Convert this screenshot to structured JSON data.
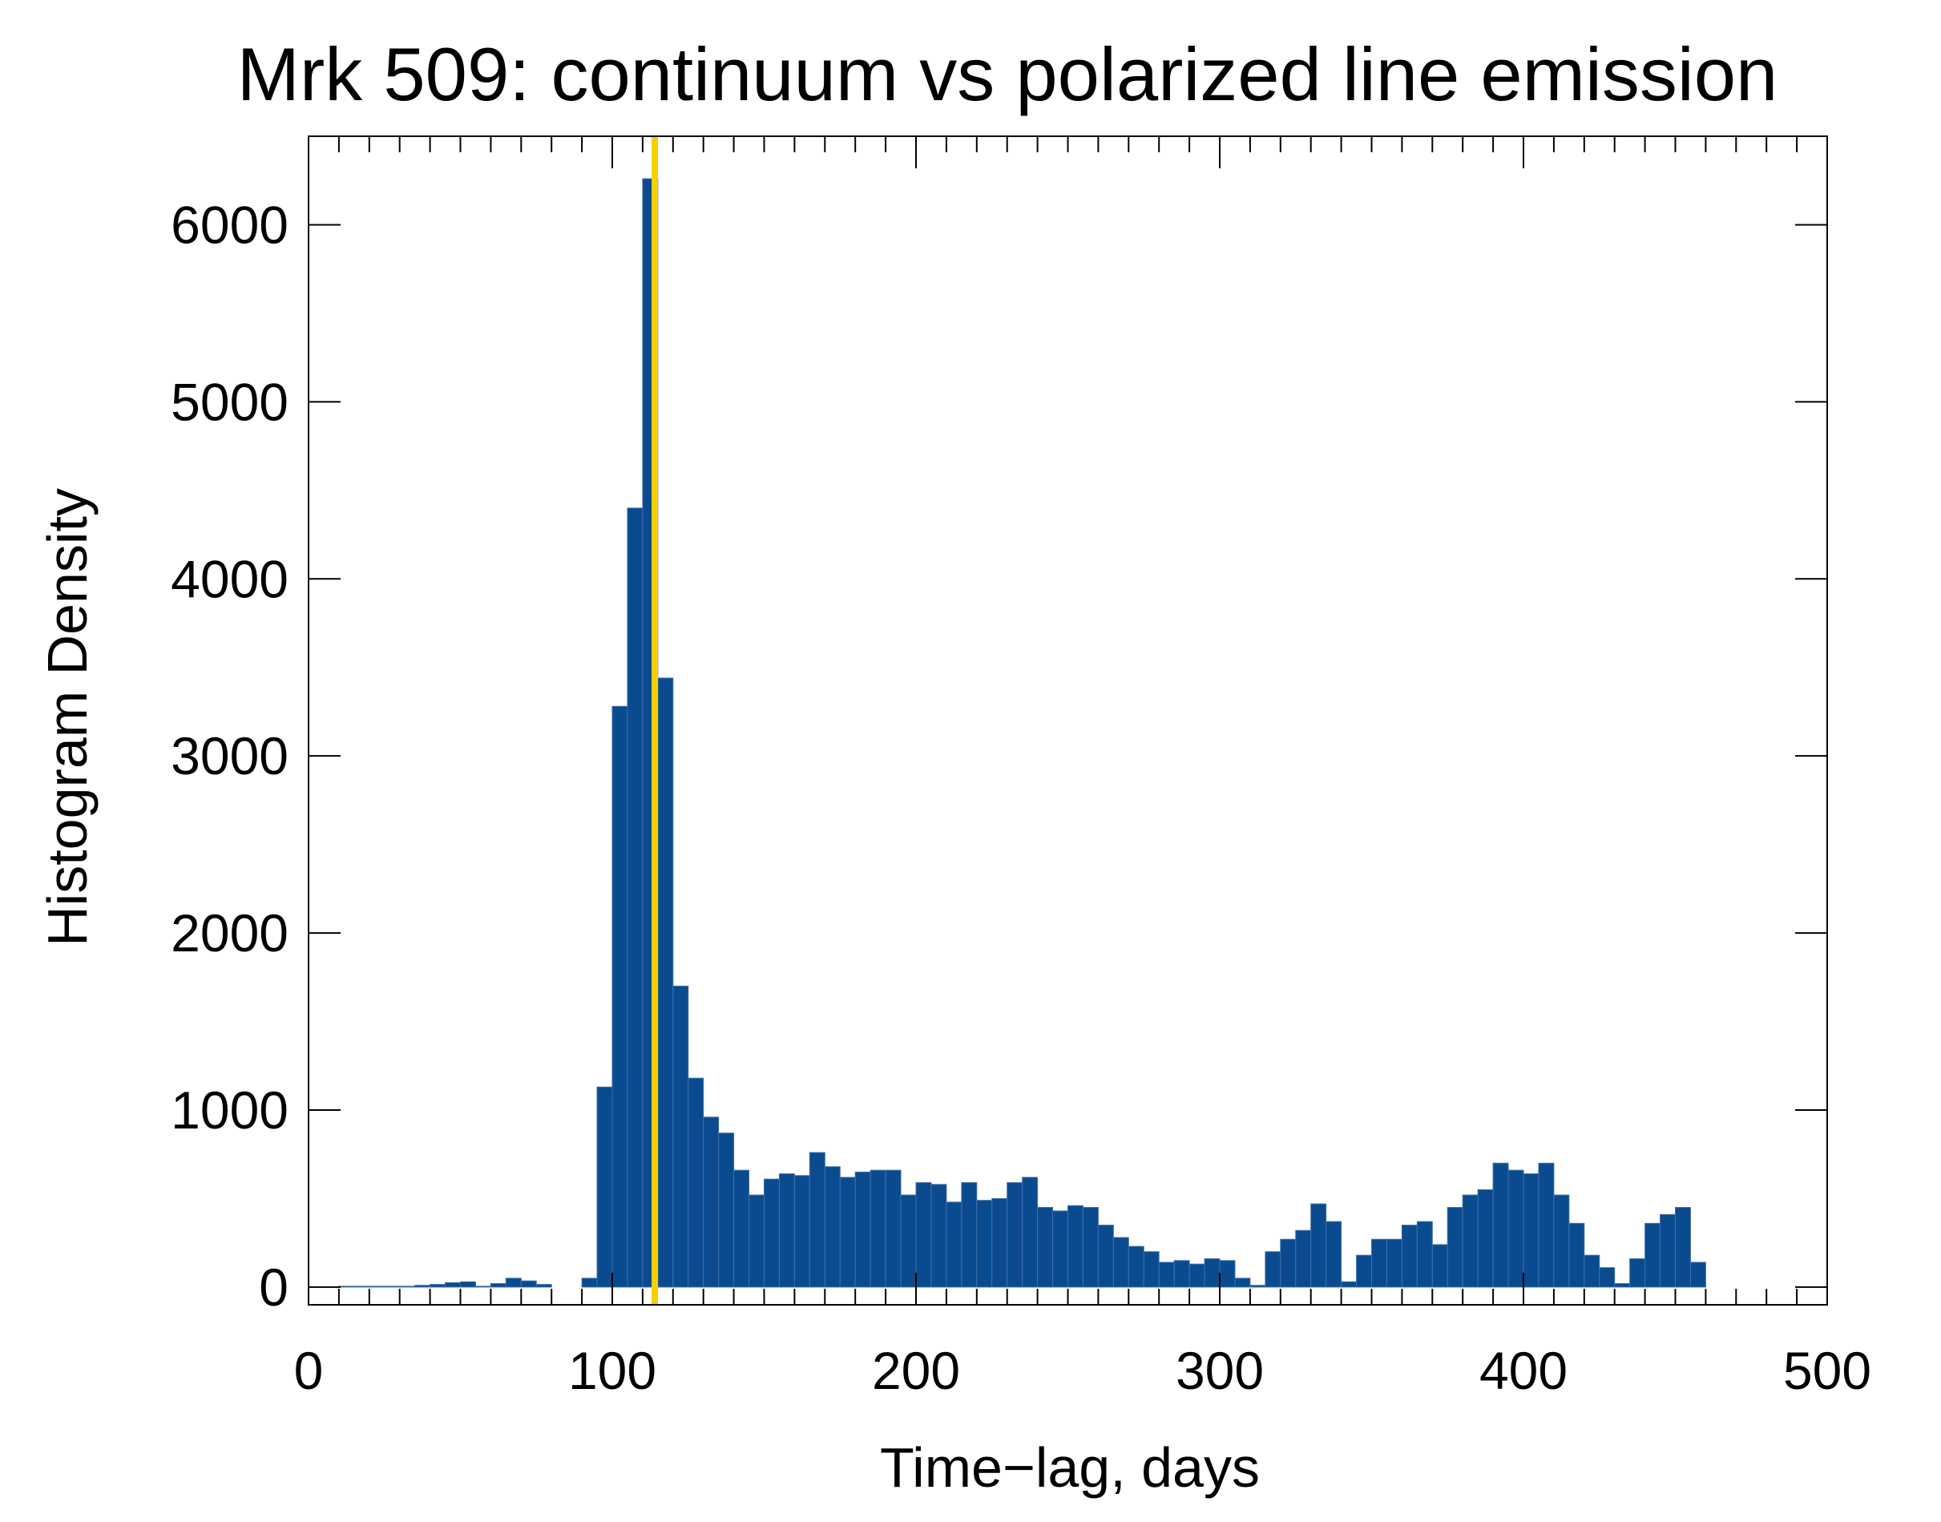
{
  "chart_data": {
    "type": "bar",
    "title": "Mrk 509: continuum vs polarized line emission",
    "xlabel": "Time−lag, days",
    "ylabel": "Histogram Density",
    "xlim": [
      0,
      500
    ],
    "ylim": [
      -100,
      6500
    ],
    "xticks": [
      "0",
      "100",
      "200",
      "300",
      "400",
      "500"
    ],
    "yticks": [
      "0",
      "1000",
      "2000",
      "3000",
      "4000",
      "5000",
      "6000"
    ],
    "xtick_values": [
      0,
      100,
      200,
      300,
      400,
      500
    ],
    "ytick_values": [
      0,
      1000,
      2000,
      3000,
      4000,
      5000,
      6000
    ],
    "bin_width": 5,
    "bin_starts": [
      10,
      15,
      20,
      25,
      30,
      35,
      40,
      45,
      50,
      55,
      60,
      65,
      70,
      75,
      80,
      85,
      90,
      95,
      100,
      105,
      110,
      115,
      120,
      125,
      130,
      135,
      140,
      145,
      150,
      155,
      160,
      165,
      170,
      175,
      180,
      185,
      190,
      195,
      200,
      205,
      210,
      215,
      220,
      225,
      230,
      235,
      240,
      245,
      250,
      255,
      260,
      265,
      270,
      275,
      280,
      285,
      290,
      295,
      300,
      305,
      310,
      315,
      320,
      325,
      330,
      335,
      340,
      345,
      350,
      355,
      360,
      365,
      370,
      375,
      380,
      385,
      390,
      395,
      400,
      405,
      410,
      415,
      420,
      425,
      430,
      435,
      440,
      445,
      450,
      455,
      460
    ],
    "values": [
      5,
      5,
      5,
      5,
      5,
      10,
      15,
      25,
      30,
      5,
      20,
      50,
      35,
      15,
      0,
      0,
      50,
      1130,
      3280,
      4400,
      6260,
      3440,
      1700,
      1180,
      960,
      870,
      660,
      520,
      610,
      640,
      630,
      760,
      680,
      620,
      650,
      660,
      660,
      520,
      590,
      580,
      480,
      590,
      490,
      500,
      590,
      620,
      450,
      430,
      460,
      450,
      350,
      280,
      230,
      200,
      140,
      150,
      130,
      160,
      150,
      50,
      10,
      200,
      270,
      320,
      470,
      370,
      30,
      180,
      270,
      270,
      350,
      370,
      240,
      450,
      520,
      550,
      700,
      660,
      640,
      700,
      520,
      360,
      180,
      110,
      20,
      160,
      360,
      410,
      450,
      140,
      0
    ],
    "marker_x": 114,
    "colors": {
      "bar": "#0a4b8f",
      "marker": "#f8d000",
      "axis": "#000000"
    }
  }
}
